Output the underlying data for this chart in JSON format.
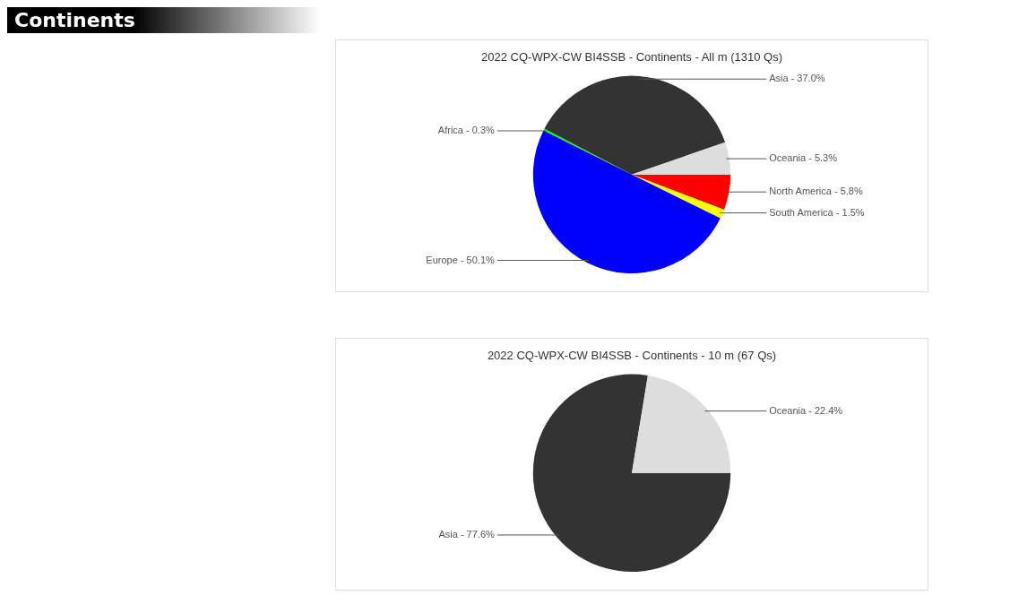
{
  "chart_data": [
    {
      "type": "other",
      "title": "Continents"
    },
    {
      "type": "pie",
      "title": "2022 CQ-WPX-CW BI4SSB - Continents - All m (1310 Qs)",
      "categories": [
        "North America",
        "South America",
        "Europe",
        "Africa",
        "Asia",
        "Oceania"
      ],
      "values": [
        5.8,
        1.5,
        50.1,
        0.3,
        37.0,
        5.3
      ],
      "colors": [
        "#ff0000",
        "#ffff00",
        "#0000ff",
        "#00ff00",
        "#333333",
        "#dddddd"
      ],
      "value_labels": [
        "5.8%",
        "1.5%",
        "50.1%",
        "0.3%",
        "37.0%",
        "5.3%"
      ]
    },
    {
      "type": "pie",
      "title": "2022 CQ-WPX-CW BI4SSB - Continents - 10 m (67 Qs)",
      "categories": [
        "Asia",
        "Oceania"
      ],
      "values": [
        77.6,
        22.4
      ],
      "colors": [
        "#333333",
        "#dddddd"
      ],
      "value_labels": [
        "77.6%",
        "22.4%"
      ]
    }
  ]
}
